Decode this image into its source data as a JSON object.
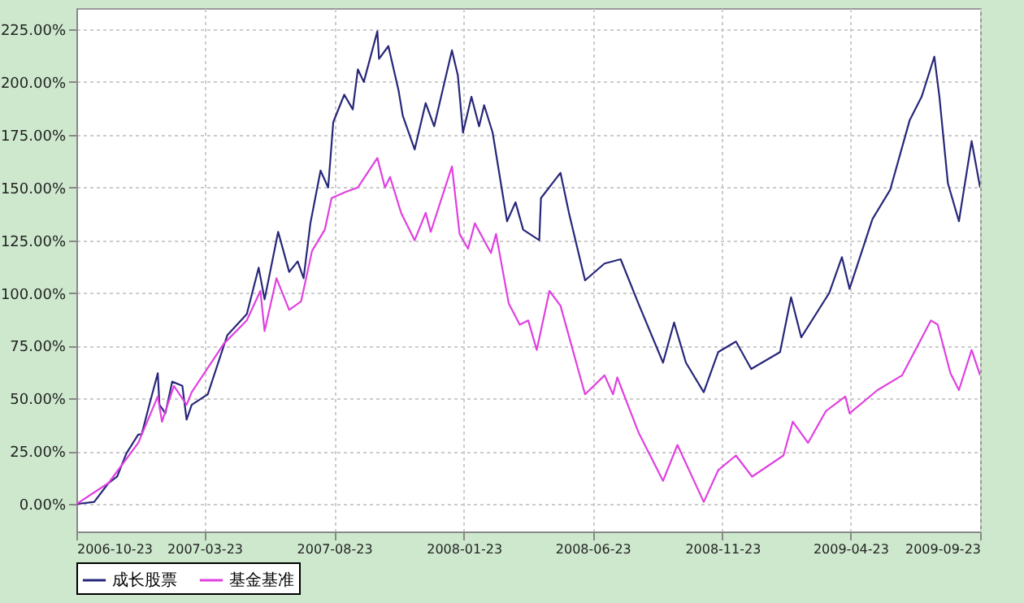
{
  "chart_data": {
    "type": "line",
    "xlim": [
      "2006-10-23",
      "2009-09-23"
    ],
    "xticks": [
      "2006-10-23",
      "2007-03-23",
      "2007-08-23",
      "2008-01-23",
      "2008-06-23",
      "2008-11-23",
      "2009-04-23",
      "2009-09-23"
    ],
    "ylim": [
      -13,
      235
    ],
    "yticks": [
      {
        "value": 0,
        "label": "0.00%"
      },
      {
        "value": 25,
        "label": "25.00%"
      },
      {
        "value": 50,
        "label": "50.00%"
      },
      {
        "value": 75,
        "label": "75.00%"
      },
      {
        "value": 100,
        "label": "100.00%"
      },
      {
        "value": 125,
        "label": "125.00%"
      },
      {
        "value": 150,
        "label": "150.00%"
      },
      {
        "value": 175,
        "label": "175.00%"
      },
      {
        "value": 200,
        "label": "200.00%"
      },
      {
        "value": 225,
        "label": "225.00%"
      }
    ],
    "grid": true,
    "legend": "bottom",
    "line_style": "solid",
    "series": [
      {
        "name": "成长股票",
        "color": "#27277a",
        "x": [
          "2006-10-23",
          "2006-11-13",
          "2006-11-30",
          "2006-12-10",
          "2006-12-21",
          "2007-01-04",
          "2007-01-08",
          "2007-01-17",
          "2007-01-27",
          "2007-01-29",
          "2007-02-05",
          "2007-02-13",
          "2007-02-25",
          "2007-03-02",
          "2007-03-08",
          "2007-03-27",
          "2007-04-19",
          "2007-05-12",
          "2007-05-26",
          "2007-06-02",
          "2007-06-18",
          "2007-07-01",
          "2007-07-11",
          "2007-07-18",
          "2007-07-26",
          "2007-08-07",
          "2007-08-16",
          "2007-08-22",
          "2007-09-04",
          "2007-09-14",
          "2007-09-20",
          "2007-09-27",
          "2007-10-13",
          "2007-10-15",
          "2007-10-26",
          "2007-11-07",
          "2007-11-12",
          "2007-11-26",
          "2007-12-09",
          "2007-12-19",
          "2008-01-09",
          "2008-01-16",
          "2008-01-22",
          "2008-02-01",
          "2008-02-10",
          "2008-02-16",
          "2008-02-26",
          "2008-03-14",
          "2008-03-24",
          "2008-04-02",
          "2008-04-21",
          "2008-04-23",
          "2008-05-16",
          "2008-05-26",
          "2008-06-14",
          "2008-07-07",
          "2008-07-26",
          "2008-08-16",
          "2008-09-14",
          "2008-09-27",
          "2008-10-11",
          "2008-11-01",
          "2008-11-18",
          "2008-12-09",
          "2008-12-27",
          "2009-01-30",
          "2009-02-12",
          "2009-02-24",
          "2009-03-29",
          "2009-04-13",
          "2009-04-22",
          "2009-05-19",
          "2009-06-09",
          "2009-07-02",
          "2009-07-16",
          "2009-07-31",
          "2009-08-06",
          "2009-08-16",
          "2009-08-29",
          "2009-09-13",
          "2009-09-23"
        ],
        "values": [
          0,
          1,
          10,
          13,
          24,
          33,
          33,
          47,
          62,
          47,
          43,
          58,
          56,
          40,
          47,
          52,
          80,
          90,
          112,
          97,
          129,
          110,
          115,
          107,
          133,
          158,
          150,
          181,
          194,
          187,
          206,
          200,
          224,
          211,
          217,
          196,
          184,
          168,
          190,
          179,
          215,
          203,
          176,
          193,
          179,
          189,
          176,
          134,
          143,
          130,
          125,
          145,
          157,
          138,
          106,
          114,
          116,
          95,
          67,
          86,
          67,
          53,
          72,
          77,
          64,
          72,
          98,
          79,
          100,
          117,
          102,
          135,
          149,
          182,
          193,
          212,
          193,
          152,
          134,
          172,
          150
        ]
      },
      {
        "name": "基金基准",
        "color": "#e040e0",
        "x": [
          "2006-10-23",
          "2006-11-30",
          "2007-01-04",
          "2007-01-27",
          "2007-02-01",
          "2007-02-15",
          "2007-03-02",
          "2007-03-08",
          "2007-04-15",
          "2007-05-12",
          "2007-05-28",
          "2007-06-02",
          "2007-06-16",
          "2007-07-01",
          "2007-07-15",
          "2007-07-28",
          "2007-08-12",
          "2007-08-20",
          "2007-09-06",
          "2007-09-20",
          "2007-10-13",
          "2007-10-22",
          "2007-10-28",
          "2007-11-10",
          "2007-11-26",
          "2007-12-09",
          "2007-12-15",
          "2008-01-09",
          "2008-01-18",
          "2008-01-28",
          "2008-02-05",
          "2008-02-24",
          "2008-03-01",
          "2008-03-16",
          "2008-03-29",
          "2008-04-08",
          "2008-04-18",
          "2008-05-03",
          "2008-05-16",
          "2008-06-14",
          "2008-07-07",
          "2008-07-17",
          "2008-07-22",
          "2008-08-16",
          "2008-09-14",
          "2008-10-01",
          "2008-11-01",
          "2008-11-18",
          "2008-12-09",
          "2008-12-28",
          "2009-02-03",
          "2009-02-14",
          "2009-03-04",
          "2009-03-25",
          "2009-04-17",
          "2009-04-22",
          "2009-05-25",
          "2009-06-23",
          "2009-07-27",
          "2009-08-04",
          "2009-08-19",
          "2009-08-29",
          "2009-09-13",
          "2009-09-23"
        ],
        "values": [
          0,
          10,
          29,
          51,
          39,
          56,
          47,
          53,
          76,
          87,
          101,
          82,
          107,
          92,
          96,
          120,
          130,
          145,
          148,
          150,
          164,
          150,
          155,
          138,
          125,
          138,
          129,
          160,
          128,
          121,
          133,
          119,
          128,
          95,
          85,
          87,
          73,
          101,
          94,
          52,
          61,
          52,
          60,
          34,
          11,
          28,
          1,
          16,
          23,
          13,
          23,
          39,
          29,
          44,
          51,
          43,
          54,
          61,
          87,
          85,
          62,
          54,
          73,
          61
        ]
      }
    ]
  }
}
